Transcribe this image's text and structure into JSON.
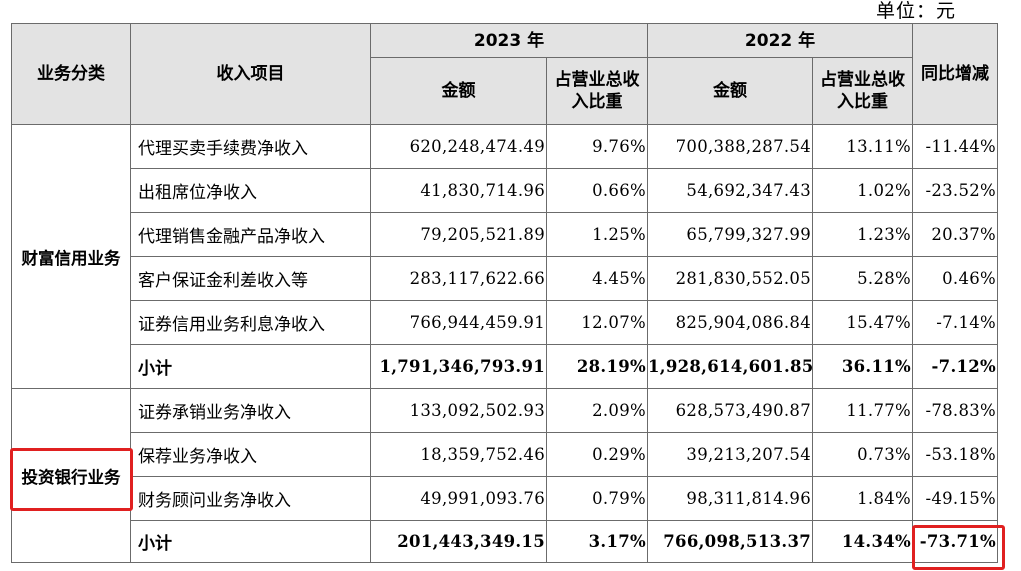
{
  "unit_label": "单位：元",
  "headers": {
    "business_category": "业务分类",
    "revenue_item": "收入项目",
    "year_2023": "2023 年",
    "year_2022": "2022 年",
    "amount": "金额",
    "share": "占营业总收入比重",
    "yoy_change": "同比增减"
  },
  "groups": [
    {
      "category": "财富信用业务",
      "rows": [
        {
          "item": "代理买卖手续费净收入",
          "amount_2023": "620,248,474.49",
          "share_2023": "9.76%",
          "amount_2022": "700,388,287.54",
          "share_2022": "13.11%",
          "yoy": "-11.44%"
        },
        {
          "item": "出租席位净收入",
          "amount_2023": "41,830,714.96",
          "share_2023": "0.66%",
          "amount_2022": "54,692,347.43",
          "share_2022": "1.02%",
          "yoy": "-23.52%"
        },
        {
          "item": "代理销售金融产品净收入",
          "amount_2023": "79,205,521.89",
          "share_2023": "1.25%",
          "amount_2022": "65,799,327.99",
          "share_2022": "1.23%",
          "yoy": "20.37%"
        },
        {
          "item": "客户保证金利差收入等",
          "amount_2023": "283,117,622.66",
          "share_2023": "4.45%",
          "amount_2022": "281,830,552.05",
          "share_2022": "5.28%",
          "yoy": "0.46%"
        },
        {
          "item": "证券信用业务利息净收入",
          "amount_2023": "766,944,459.91",
          "share_2023": "12.07%",
          "amount_2022": "825,904,086.84",
          "share_2022": "15.47%",
          "yoy": "-7.14%"
        }
      ],
      "subtotal": {
        "item": "小计",
        "amount_2023": "1,791,346,793.91",
        "share_2023": "28.19%",
        "amount_2022": "1,928,614,601.85",
        "share_2022": "36.11%",
        "yoy": "-7.12%"
      }
    },
    {
      "category": "投资银行业务",
      "rows": [
        {
          "item": "证券承销业务净收入",
          "amount_2023": "133,092,502.93",
          "share_2023": "2.09%",
          "amount_2022": "628,573,490.87",
          "share_2022": "11.77%",
          "yoy": "-78.83%"
        },
        {
          "item": "保荐业务净收入",
          "amount_2023": "18,359,752.46",
          "share_2023": "0.29%",
          "amount_2022": "39,213,207.54",
          "share_2022": "0.73%",
          "yoy": "-53.18%"
        },
        {
          "item": "财务顾问业务净收入",
          "amount_2023": "49,991,093.76",
          "share_2023": "0.79%",
          "amount_2022": "98,311,814.96",
          "share_2022": "1.84%",
          "yoy": "-49.15%"
        }
      ],
      "subtotal": {
        "item": "小计",
        "amount_2023": "201,443,349.15",
        "share_2023": "3.17%",
        "amount_2022": "766,098,513.37",
        "share_2022": "14.34%",
        "yoy": "-73.71%"
      }
    }
  ],
  "highlight_color": "#e02020"
}
